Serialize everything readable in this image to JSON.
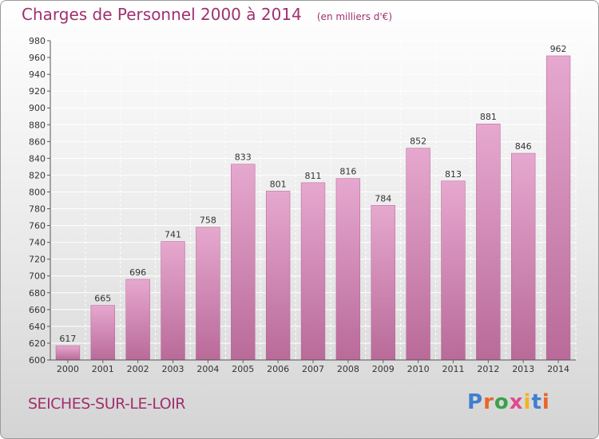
{
  "title": "Charges de Personnel 2000 à 2014",
  "subtitle": "(en milliers d'€)",
  "place": "SEICHES-SUR-LE-LOIR",
  "logo": "Proxiti",
  "colors": {
    "bar_top": "#e6a8cf",
    "bar_bottom": "#b96a99",
    "title": "#a0306e",
    "grid": "#ffffff"
  },
  "chart_data": {
    "type": "bar",
    "title": "Charges de Personnel 2000 à 2014",
    "subtitle": "(en milliers d'€)",
    "categories": [
      "2000",
      "2001",
      "2002",
      "2003",
      "2004",
      "2005",
      "2006",
      "2007",
      "2008",
      "2009",
      "2010",
      "2011",
      "2012",
      "2013",
      "2014"
    ],
    "values": [
      617,
      665,
      696,
      741,
      758,
      833,
      801,
      811,
      816,
      784,
      852,
      813,
      881,
      846,
      962
    ],
    "ylim": [
      600,
      980
    ],
    "yticks": [
      600,
      620,
      640,
      660,
      680,
      700,
      720,
      740,
      760,
      780,
      800,
      820,
      840,
      860,
      880,
      900,
      920,
      940,
      960,
      980
    ],
    "xlabel": "",
    "ylabel": "",
    "grid": true
  }
}
